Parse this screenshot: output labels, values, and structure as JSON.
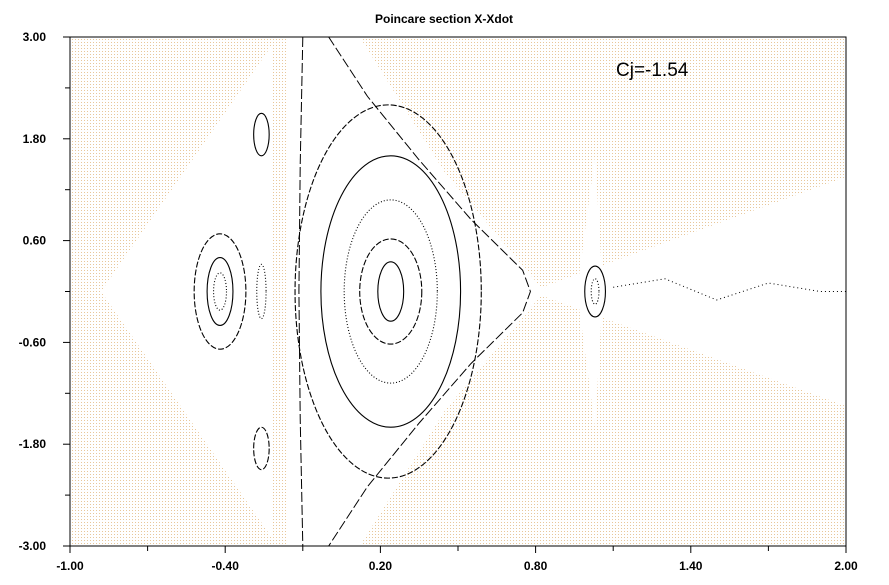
{
  "chart_data": {
    "type": "scatter",
    "title": "Poincare section X-Xdot",
    "annotation": "Cj=-1.54",
    "xlabel": "",
    "ylabel": "",
    "xlim": [
      -1.0,
      2.0
    ],
    "ylim": [
      -3.0,
      3.0
    ],
    "x_tick_labels": [
      "-1.00",
      "-0.40",
      "0.20",
      "0.80",
      "1.40",
      "2.00"
    ],
    "y_tick_labels": [
      "3.00",
      "1.80",
      "0.60",
      "-0.60",
      "-1.80",
      "-3.00"
    ],
    "x_major_ticks": [
      -1.0,
      -0.4,
      0.2,
      0.8,
      1.4,
      2.0
    ],
    "x_minor_ticks": [
      -0.7,
      -0.1,
      0.5,
      1.1,
      1.7
    ],
    "y_major_ticks": [
      3.0,
      1.8,
      0.6,
      -0.6,
      -1.8,
      -3.0
    ],
    "y_minor_ticks": [
      2.4,
      1.2,
      0.0,
      -1.2,
      -2.4
    ],
    "forbidden_region_color": "#e8c79a",
    "grid": false,
    "allowed_region": {
      "left_lobe": [
        [
          -0.88,
          0.0
        ],
        [
          -0.22,
          2.9
        ],
        [
          -0.22,
          -2.9
        ]
      ],
      "central_band": [
        [
          -0.16,
          3.0
        ],
        [
          0.12,
          3.0
        ],
        [
          0.45,
          1.4
        ],
        [
          0.82,
          0.05
        ],
        [
          0.82,
          -0.05
        ],
        [
          0.45,
          -1.4
        ],
        [
          0.12,
          -3.0
        ],
        [
          -0.16,
          -3.0
        ]
      ],
      "right_cone": [
        [
          0.78,
          0.0
        ],
        [
          2.0,
          1.35
        ],
        [
          2.0,
          -1.35
        ]
      ],
      "right_spike": [
        [
          0.96,
          0.0
        ],
        [
          1.03,
          1.6
        ],
        [
          1.06,
          0.0
        ],
        [
          1.03,
          -1.6
        ]
      ]
    },
    "series": [
      {
        "kind": "orbit",
        "center": [
          0.24,
          0.0
        ],
        "rx": 0.05,
        "ry": 0.35
      },
      {
        "kind": "orbit",
        "center": [
          0.24,
          0.0
        ],
        "rx": 0.12,
        "ry": 0.62
      },
      {
        "kind": "orbit",
        "center": [
          0.24,
          0.0
        ],
        "rx": 0.18,
        "ry": 1.08
      },
      {
        "kind": "orbit",
        "center": [
          0.24,
          0.0
        ],
        "rx": 0.27,
        "ry": 1.6
      },
      {
        "kind": "orbit",
        "center": [
          0.23,
          0.0
        ],
        "rx": 0.36,
        "ry": 2.2
      },
      {
        "kind": "orbit",
        "center": [
          -0.42,
          0.0
        ],
        "rx": 0.025,
        "ry": 0.22
      },
      {
        "kind": "orbit",
        "center": [
          -0.42,
          0.0
        ],
        "rx": 0.05,
        "ry": 0.4
      },
      {
        "kind": "orbit",
        "center": [
          -0.42,
          0.0
        ],
        "rx": 0.1,
        "ry": 0.68
      },
      {
        "kind": "orbit",
        "center": [
          -0.26,
          0.0
        ],
        "rx": 0.018,
        "ry": 0.32
      },
      {
        "kind": "orbit",
        "center": [
          -0.26,
          1.85
        ],
        "rx": 0.03,
        "ry": 0.25
      },
      {
        "kind": "orbit",
        "center": [
          -0.26,
          -1.85
        ],
        "rx": 0.03,
        "ry": 0.25
      },
      {
        "kind": "orbit",
        "center": [
          1.03,
          0.0
        ],
        "rx": 0.015,
        "ry": 0.15
      },
      {
        "kind": "orbit",
        "center": [
          1.03,
          0.0
        ],
        "rx": 0.04,
        "ry": 0.3
      },
      {
        "kind": "separatrix",
        "points": [
          [
            -0.1,
            3.0
          ],
          [
            -0.11,
            1.5
          ],
          [
            -0.115,
            0.0
          ],
          [
            -0.11,
            -1.5
          ],
          [
            -0.1,
            -3.0
          ]
        ]
      },
      {
        "kind": "separatrix",
        "points": [
          [
            0.0,
            3.0
          ],
          [
            0.15,
            2.3
          ],
          [
            0.35,
            1.55
          ],
          [
            0.55,
            0.85
          ],
          [
            0.75,
            0.25
          ],
          [
            0.78,
            0.0
          ],
          [
            0.75,
            -0.25
          ],
          [
            0.55,
            -0.85
          ],
          [
            0.35,
            -1.55
          ],
          [
            0.15,
            -2.3
          ],
          [
            0.0,
            -3.0
          ]
        ]
      },
      {
        "kind": "chaotic_band",
        "points": [
          [
            1.1,
            0.05
          ],
          [
            1.3,
            0.15
          ],
          [
            1.5,
            -0.1
          ],
          [
            1.7,
            0.1
          ],
          [
            1.9,
            0.0
          ],
          [
            2.0,
            0.0
          ]
        ]
      }
    ]
  }
}
